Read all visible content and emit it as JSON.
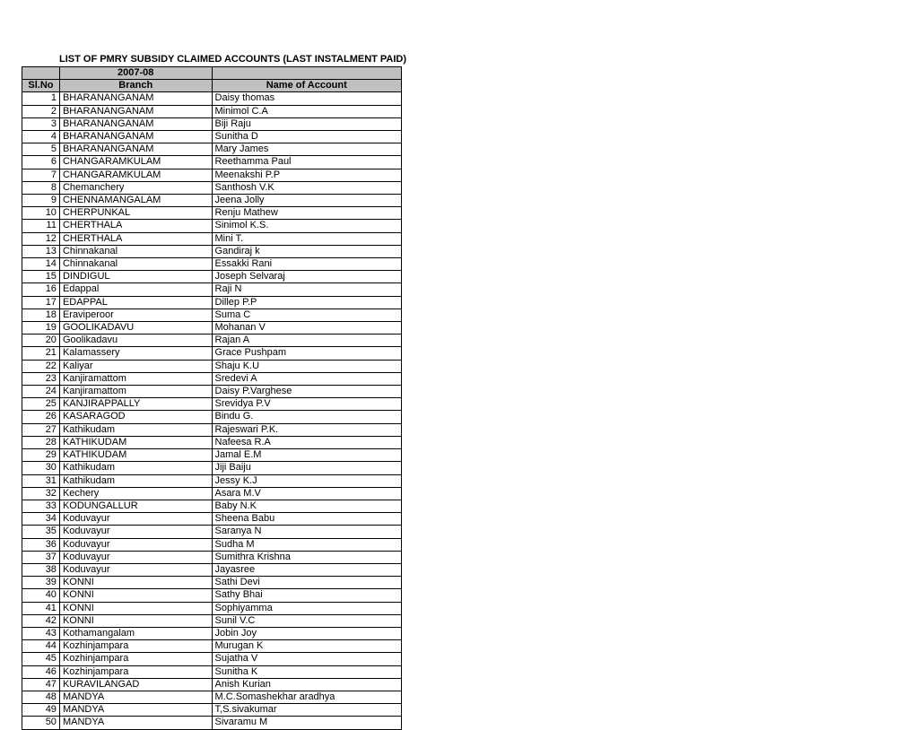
{
  "title": "LIST OF PMRY SUBSIDY CLAIMED ACCOUNTS (LAST INSTALMENT PAID)",
  "year": "2007-08",
  "headers": {
    "sl": "Sl.No",
    "branch": "Branch",
    "name": "Name of  Account"
  },
  "rows": [
    {
      "sl": "1",
      "branch": "BHARANANGANAM",
      "name": "Daisy thomas"
    },
    {
      "sl": "2",
      "branch": "BHARANANGANAM",
      "name": "Minimol C.A"
    },
    {
      "sl": "3",
      "branch": "BHARANANGANAM",
      "name": "Biji Raju"
    },
    {
      "sl": "4",
      "branch": "BHARANANGANAM",
      "name": "Sunitha D"
    },
    {
      "sl": "5",
      "branch": "BHARANANGANAM",
      "name": "Mary James"
    },
    {
      "sl": "6",
      "branch": "CHANGARAMKULAM",
      "name": "Reethamma Paul"
    },
    {
      "sl": "7",
      "branch": "CHANGARAMKULAM",
      "name": "Meenakshi P.P"
    },
    {
      "sl": "8",
      "branch": "Chemanchery",
      "name": "Santhosh V.K"
    },
    {
      "sl": "9",
      "branch": "CHENNAMANGALAM",
      "name": "Jeena Jolly"
    },
    {
      "sl": "10",
      "branch": "CHERPUNKAL",
      "name": "Renju Mathew"
    },
    {
      "sl": "11",
      "branch": "CHERTHALA",
      "name": "Sinimol K.S."
    },
    {
      "sl": "12",
      "branch": "CHERTHALA",
      "name": "Mini T."
    },
    {
      "sl": "13",
      "branch": "Chinnakanal",
      "name": "Gandiraj k"
    },
    {
      "sl": "14",
      "branch": "Chinnakanal",
      "name": "Essakki Rani"
    },
    {
      "sl": "15",
      "branch": "DINDIGUL",
      "name": "Joseph Selvaraj"
    },
    {
      "sl": "16",
      "branch": "Edappal",
      "name": "Raji N"
    },
    {
      "sl": "17",
      "branch": "EDAPPAL",
      "name": "Dillep P.P"
    },
    {
      "sl": "18",
      "branch": "Eraviperoor",
      "name": "Suma C"
    },
    {
      "sl": "19",
      "branch": "GOOLIKADAVU",
      "name": "Mohanan V"
    },
    {
      "sl": "20",
      "branch": "Goolikadavu",
      "name": "Rajan A"
    },
    {
      "sl": "21",
      "branch": "Kalamassery",
      "name": "Grace Pushpam"
    },
    {
      "sl": "22",
      "branch": "Kaliyar",
      "name": "Shaju K.U"
    },
    {
      "sl": "23",
      "branch": "Kanjiramattom",
      "name": "Sredevi A"
    },
    {
      "sl": "24",
      "branch": "Kanjiramattom",
      "name": "Daisy P.Varghese"
    },
    {
      "sl": "25",
      "branch": "KANJIRAPPALLY",
      "name": "Srevidya P.V"
    },
    {
      "sl": "26",
      "branch": "KASARAGOD",
      "name": "Bindu G."
    },
    {
      "sl": "27",
      "branch": "Kathikudam",
      "name": "Rajeswari P.K."
    },
    {
      "sl": "28",
      "branch": "KATHIKUDAM",
      "name": "Nafeesa R.A"
    },
    {
      "sl": "29",
      "branch": "KATHIKUDAM",
      "name": "Jamal E.M"
    },
    {
      "sl": "30",
      "branch": "Kathikudam",
      "name": "Jiji Baiju"
    },
    {
      "sl": "31",
      "branch": "Kathikudam",
      "name": "Jessy K.J"
    },
    {
      "sl": "32",
      "branch": "Kechery",
      "name": "Asara M.V"
    },
    {
      "sl": "33",
      "branch": "KODUNGALLUR",
      "name": "Baby N.K"
    },
    {
      "sl": "34",
      "branch": "Koduvayur",
      "name": "Sheena Babu"
    },
    {
      "sl": "35",
      "branch": "Koduvayur",
      "name": "Saranya N"
    },
    {
      "sl": "36",
      "branch": "Koduvayur",
      "name": "Sudha M"
    },
    {
      "sl": "37",
      "branch": "Koduvayur",
      "name": "Sumithra Krishna"
    },
    {
      "sl": "38",
      "branch": "Koduvayur",
      "name": "Jayasree"
    },
    {
      "sl": "39",
      "branch": "KONNI",
      "name": "Sathi Devi"
    },
    {
      "sl": "40",
      "branch": "KONNI",
      "name": "Sathy Bhai"
    },
    {
      "sl": "41",
      "branch": "KONNI",
      "name": "Sophiyamma"
    },
    {
      "sl": "42",
      "branch": "KONNI",
      "name": "Sunil V.C"
    },
    {
      "sl": "43",
      "branch": "Kothamangalam",
      "name": "Jobin Joy"
    },
    {
      "sl": "44",
      "branch": "Kozhinjampara",
      "name": "Murugan K"
    },
    {
      "sl": "45",
      "branch": "Kozhinjampara",
      "name": "Sujatha V"
    },
    {
      "sl": "46",
      "branch": "Kozhinjampara",
      "name": "Sunitha K"
    },
    {
      "sl": "47",
      "branch": "KURAVILANGAD",
      "name": "Anish Kurian"
    },
    {
      "sl": "48",
      "branch": "MANDYA",
      "name": "M.C.Somashekhar aradhya"
    },
    {
      "sl": "49",
      "branch": "MANDYA",
      "name": "T,S.sivakumar"
    },
    {
      "sl": "50",
      "branch": "MANDYA",
      "name": "Sivaramu M"
    }
  ]
}
